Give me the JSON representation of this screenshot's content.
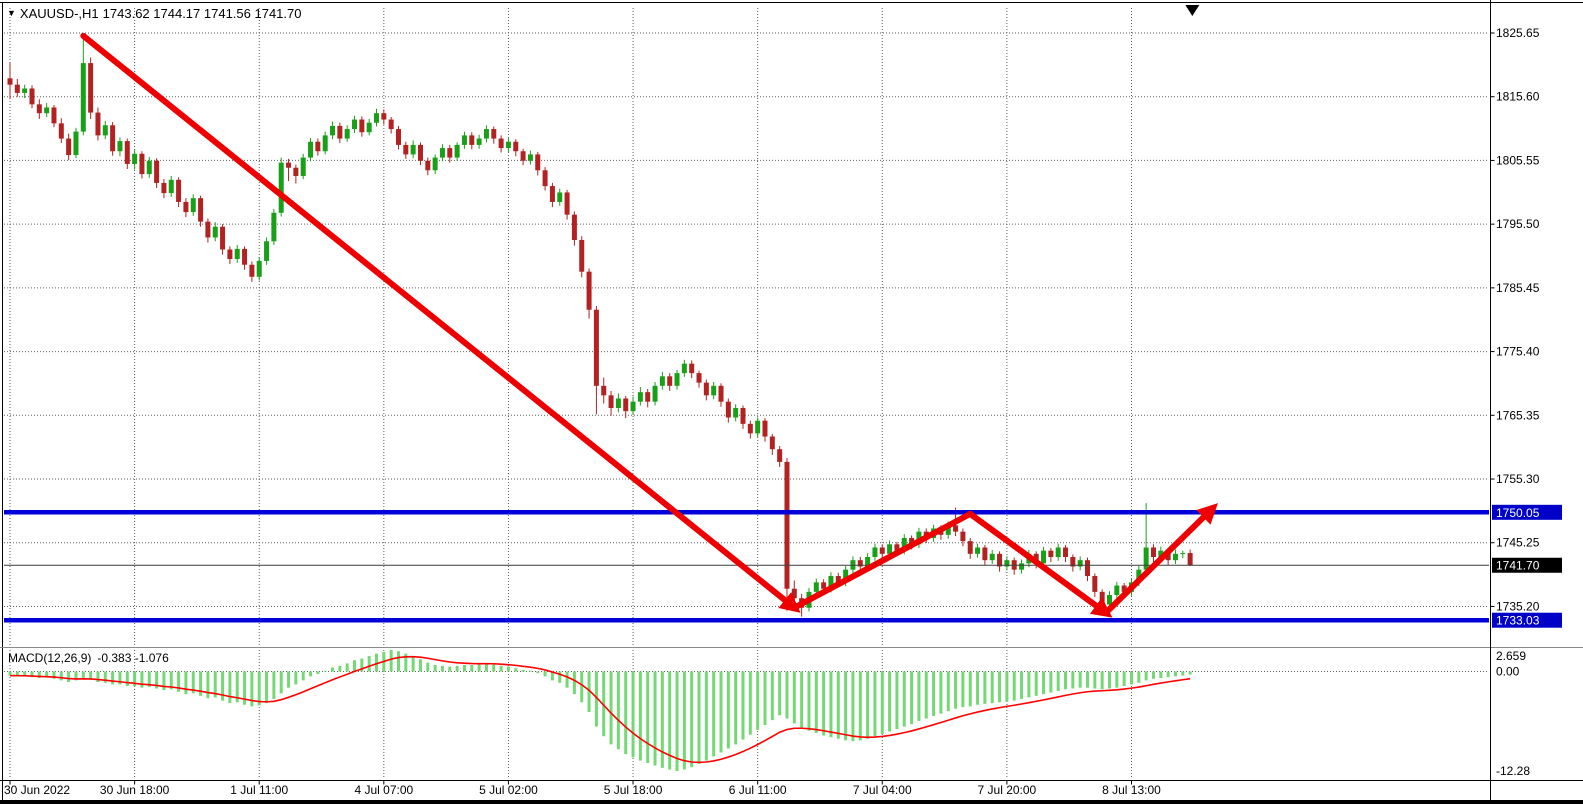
{
  "titlebar": {
    "symbol": "XAUUSD-,H1",
    "ohlc": "1743.62 1744.17 1741.56 1741.70"
  },
  "indicator_label": {
    "name": "MACD(12,26,9)",
    "values": "-0.383 -1.076"
  },
  "colors": {
    "background": "#FFFFFF",
    "grid": "#5E5E5E",
    "candle_up": "#18A118",
    "candle_down": "#B22222",
    "macd_histogram": "#74D974",
    "macd_signal": "#FF0000",
    "hline": "#0000D8",
    "current_price_line": "#3C3C3C",
    "trend_arrow": "#EE0000",
    "tag_blue_bg": "#0000C8",
    "tag_black_bg": "#000000"
  },
  "price_axis": {
    "labels": [
      "1825.65",
      "1815.60",
      "1805.55",
      "1795.50",
      "1785.45",
      "1775.40",
      "1765.35",
      "1755.30",
      "1745.25",
      "1735.20"
    ],
    "tags": [
      {
        "text": "1750.05",
        "price": 1750.05,
        "bg": "#0000C8"
      },
      {
        "text": "1741.70",
        "price": 1741.7,
        "bg": "#000000"
      },
      {
        "text": "1733.03",
        "price": 1733.03,
        "bg": "#0000C8"
      }
    ]
  },
  "macd_axis": [
    {
      "text": "2.659",
      "value": 2.659
    },
    {
      "text": "0.00",
      "value": 0.0
    },
    {
      "text": "-12.28",
      "value": -12.28
    }
  ],
  "time_axis": [
    {
      "text": "30 Jun 2022",
      "bar": 0
    },
    {
      "text": "30 Jun 18:00",
      "bar": 17
    },
    {
      "text": "1 Jul 11:00",
      "bar": 34
    },
    {
      "text": "4 Jul 07:00",
      "bar": 51
    },
    {
      "text": "5 Jul 02:00",
      "bar": 68
    },
    {
      "text": "5 Jul 18:00",
      "bar": 85
    },
    {
      "text": "6 Jul 11:00",
      "bar": 102
    },
    {
      "text": "7 Jul 04:00",
      "bar": 119
    },
    {
      "text": "7 Jul 20:00",
      "bar": 136
    },
    {
      "text": "8 Jul 13:00",
      "bar": 153
    }
  ],
  "levels": {
    "horizontal_lines": [
      {
        "price": 1750.05
      },
      {
        "price": 1733.03
      }
    ],
    "current_price": 1741.7
  },
  "annotations": {
    "trend_arrow": {
      "color": "#EE0000",
      "width": 6,
      "points": [
        [
          10,
          1825.2
        ],
        [
          107,
          1735.0
        ],
        [
          131,
          1749.8
        ],
        [
          149.5,
          1734.2
        ],
        [
          164,
          1750.6
        ]
      ],
      "arrowhead_at": [
        1,
        3,
        4
      ]
    },
    "object_marker": {
      "shape": "down-triangle",
      "color": "#000000",
      "bar": 161.3
    }
  },
  "chart_data": {
    "type": "candlestick",
    "symbol": "XAUUSD-",
    "timeframe": "H1",
    "title": "XAUUSD-,H1",
    "grid": true,
    "price_range": [
      1733.03,
      1825.65
    ],
    "last_ohlc": {
      "open": 1743.62,
      "high": 1744.17,
      "low": 1741.56,
      "close": 1741.7
    },
    "candles": [
      [
        1818.5,
        1821.0,
        1815.2,
        1817.5
      ],
      [
        1817.5,
        1818.4,
        1815.6,
        1816.2
      ],
      [
        1816.2,
        1817.5,
        1815.4,
        1816.9
      ],
      [
        1816.9,
        1817.4,
        1813.8,
        1814.4
      ],
      [
        1814.4,
        1815.2,
        1812.1,
        1813.0
      ],
      [
        1813.0,
        1814.6,
        1812.4,
        1813.9
      ],
      [
        1813.9,
        1814.3,
        1810.8,
        1811.4
      ],
      [
        1811.4,
        1812.2,
        1808.3,
        1809.0
      ],
      [
        1809.0,
        1809.8,
        1805.6,
        1806.4
      ],
      [
        1806.4,
        1810.7,
        1805.9,
        1810.1
      ],
      [
        1810.1,
        1825.3,
        1809.5,
        1820.9
      ],
      [
        1820.9,
        1821.8,
        1812.1,
        1813.1
      ],
      [
        1813.1,
        1813.9,
        1808.7,
        1809.5
      ],
      [
        1809.5,
        1811.8,
        1808.9,
        1811.1
      ],
      [
        1811.1,
        1811.6,
        1806.3,
        1807.0
      ],
      [
        1807.0,
        1809.2,
        1806.2,
        1808.6
      ],
      [
        1808.6,
        1809.0,
        1804.2,
        1805.0
      ],
      [
        1805.0,
        1807.3,
        1804.1,
        1806.6
      ],
      [
        1806.6,
        1807.0,
        1802.7,
        1803.4
      ],
      [
        1803.4,
        1806.1,
        1802.8,
        1805.5
      ],
      [
        1805.5,
        1805.9,
        1801.2,
        1802.0
      ],
      [
        1802.0,
        1802.6,
        1799.6,
        1800.4
      ],
      [
        1800.4,
        1803.1,
        1799.8,
        1802.5
      ],
      [
        1802.5,
        1802.9,
        1798.2,
        1799.0
      ],
      [
        1799.0,
        1799.6,
        1796.6,
        1797.4
      ],
      [
        1797.4,
        1800.2,
        1796.8,
        1799.6
      ],
      [
        1799.6,
        1800.0,
        1795.1,
        1795.9
      ],
      [
        1795.9,
        1796.4,
        1792.6,
        1793.4
      ],
      [
        1793.4,
        1795.8,
        1792.8,
        1795.1
      ],
      [
        1795.1,
        1795.5,
        1790.7,
        1791.5
      ],
      [
        1791.5,
        1792.0,
        1789.2,
        1790.0
      ],
      [
        1790.0,
        1792.2,
        1789.4,
        1791.6
      ],
      [
        1791.6,
        1792.0,
        1788.3,
        1789.1
      ],
      [
        1789.1,
        1789.6,
        1786.4,
        1787.2
      ],
      [
        1787.2,
        1790.3,
        1786.6,
        1789.7
      ],
      [
        1789.7,
        1793.4,
        1789.1,
        1792.8
      ],
      [
        1792.8,
        1797.9,
        1792.2,
        1797.3
      ],
      [
        1797.3,
        1806.0,
        1796.7,
        1805.2
      ],
      [
        1805.2,
        1805.8,
        1802.3,
        1804.4
      ],
      [
        1804.4,
        1804.9,
        1801.9,
        1803.1
      ],
      [
        1803.1,
        1806.6,
        1802.6,
        1806.0
      ],
      [
        1806.0,
        1809.1,
        1805.4,
        1808.5
      ],
      [
        1808.5,
        1809.0,
        1806.3,
        1807.0
      ],
      [
        1807.0,
        1810.1,
        1806.5,
        1809.5
      ],
      [
        1809.5,
        1811.7,
        1808.9,
        1811.0
      ],
      [
        1811.0,
        1811.5,
        1808.3,
        1809.0
      ],
      [
        1809.0,
        1811.1,
        1808.5,
        1810.5
      ],
      [
        1810.5,
        1812.6,
        1809.9,
        1812.0
      ],
      [
        1812.0,
        1812.5,
        1809.3,
        1810.0
      ],
      [
        1810.0,
        1812.1,
        1809.5,
        1811.5
      ],
      [
        1811.5,
        1813.7,
        1810.9,
        1813.0
      ],
      [
        1813.0,
        1813.6,
        1811.2,
        1812.0
      ],
      [
        1812.0,
        1812.4,
        1809.8,
        1810.5
      ],
      [
        1810.5,
        1811.0,
        1807.3,
        1808.0
      ],
      [
        1808.0,
        1808.5,
        1805.8,
        1806.5
      ],
      [
        1806.5,
        1808.7,
        1805.9,
        1808.0
      ],
      [
        1808.0,
        1808.4,
        1804.8,
        1805.5
      ],
      [
        1805.5,
        1806.0,
        1803.2,
        1804.0
      ],
      [
        1804.0,
        1806.5,
        1803.4,
        1806.0
      ],
      [
        1806.0,
        1808.1,
        1805.4,
        1807.5
      ],
      [
        1807.5,
        1808.0,
        1805.2,
        1806.0
      ],
      [
        1806.0,
        1808.4,
        1805.5,
        1808.0
      ],
      [
        1808.0,
        1810.1,
        1807.4,
        1809.5
      ],
      [
        1809.5,
        1810.0,
        1807.3,
        1808.0
      ],
      [
        1808.0,
        1809.6,
        1807.4,
        1809.0
      ],
      [
        1809.0,
        1811.1,
        1808.4,
        1810.5
      ],
      [
        1810.5,
        1810.9,
        1808.2,
        1809.0
      ],
      [
        1809.0,
        1809.5,
        1806.8,
        1807.5
      ],
      [
        1807.5,
        1809.1,
        1806.9,
        1808.5
      ],
      [
        1808.5,
        1808.9,
        1806.2,
        1807.0
      ],
      [
        1807.0,
        1807.4,
        1804.8,
        1805.5
      ],
      [
        1805.5,
        1807.1,
        1804.9,
        1806.5
      ],
      [
        1806.5,
        1806.9,
        1803.2,
        1804.0
      ],
      [
        1804.0,
        1804.5,
        1800.8,
        1801.5
      ],
      [
        1801.5,
        1802.0,
        1798.2,
        1799.0
      ],
      [
        1799.0,
        1801.1,
        1798.4,
        1800.5
      ],
      [
        1800.5,
        1800.9,
        1796.2,
        1797.0
      ],
      [
        1797.0,
        1797.5,
        1792.1,
        1793.0
      ],
      [
        1793.0,
        1793.6,
        1787.1,
        1788.0
      ],
      [
        1788.0,
        1788.5,
        1780.6,
        1782.0
      ],
      [
        1782.0,
        1782.6,
        1765.5,
        1770.0
      ],
      [
        1770.0,
        1771.3,
        1767.2,
        1768.5
      ],
      [
        1768.5,
        1769.2,
        1765.3,
        1766.5
      ],
      [
        1766.5,
        1768.8,
        1765.8,
        1768.0
      ],
      [
        1768.0,
        1768.4,
        1764.9,
        1766.0
      ],
      [
        1766.0,
        1768.3,
        1765.4,
        1767.5
      ],
      [
        1767.5,
        1769.8,
        1766.9,
        1769.0
      ],
      [
        1769.0,
        1769.5,
        1766.6,
        1767.5
      ],
      [
        1767.5,
        1770.6,
        1766.9,
        1770.0
      ],
      [
        1770.0,
        1772.2,
        1769.4,
        1771.5
      ],
      [
        1771.5,
        1772.0,
        1769.2,
        1770.0
      ],
      [
        1770.0,
        1772.5,
        1769.4,
        1772.0
      ],
      [
        1772.0,
        1774.1,
        1771.4,
        1773.5
      ],
      [
        1773.5,
        1774.0,
        1771.2,
        1772.0
      ],
      [
        1772.0,
        1772.4,
        1769.7,
        1770.5
      ],
      [
        1770.5,
        1771.0,
        1767.7,
        1768.5
      ],
      [
        1768.5,
        1770.6,
        1767.9,
        1770.0
      ],
      [
        1770.0,
        1770.4,
        1766.7,
        1767.5
      ],
      [
        1767.5,
        1768.0,
        1764.2,
        1765.0
      ],
      [
        1765.0,
        1767.1,
        1764.4,
        1766.5
      ],
      [
        1766.5,
        1766.9,
        1763.2,
        1764.0
      ],
      [
        1764.0,
        1764.5,
        1761.7,
        1762.5
      ],
      [
        1762.5,
        1765.0,
        1761.9,
        1764.5
      ],
      [
        1764.5,
        1764.9,
        1761.2,
        1762.0
      ],
      [
        1762.0,
        1762.4,
        1759.1,
        1760.0
      ],
      [
        1760.0,
        1760.5,
        1757.2,
        1758.0
      ],
      [
        1758.0,
        1758.6,
        1734.5,
        1738.0
      ],
      [
        1738.0,
        1739.3,
        1735.6,
        1736.5
      ],
      [
        1736.5,
        1737.2,
        1733.6,
        1735.0
      ],
      [
        1735.0,
        1738.1,
        1734.4,
        1737.5
      ],
      [
        1737.5,
        1739.6,
        1736.9,
        1739.0
      ],
      [
        1739.0,
        1739.5,
        1737.2,
        1738.0
      ],
      [
        1738.0,
        1740.6,
        1737.4,
        1740.0
      ],
      [
        1740.0,
        1740.5,
        1738.2,
        1739.0
      ],
      [
        1739.0,
        1741.6,
        1738.4,
        1741.0
      ],
      [
        1741.0,
        1743.1,
        1740.4,
        1742.5
      ],
      [
        1742.5,
        1743.0,
        1740.7,
        1741.5
      ],
      [
        1741.5,
        1743.6,
        1740.9,
        1743.0
      ],
      [
        1743.0,
        1745.1,
        1742.4,
        1744.5
      ],
      [
        1744.5,
        1745.0,
        1742.7,
        1743.5
      ],
      [
        1743.5,
        1745.6,
        1742.9,
        1745.0
      ],
      [
        1745.0,
        1745.4,
        1743.2,
        1744.0
      ],
      [
        1744.0,
        1746.6,
        1743.4,
        1746.0
      ],
      [
        1746.0,
        1746.4,
        1744.2,
        1745.0
      ],
      [
        1745.0,
        1747.6,
        1744.4,
        1747.0
      ],
      [
        1747.0,
        1747.5,
        1745.2,
        1746.0
      ],
      [
        1746.0,
        1748.1,
        1745.4,
        1747.5
      ],
      [
        1747.5,
        1748.0,
        1745.7,
        1746.5
      ],
      [
        1746.5,
        1748.6,
        1745.9,
        1748.0
      ],
      [
        1748.0,
        1750.8,
        1746.3,
        1747.0
      ],
      [
        1747.0,
        1747.5,
        1744.7,
        1745.5
      ],
      [
        1745.5,
        1746.0,
        1742.7,
        1743.5
      ],
      [
        1743.5,
        1745.1,
        1742.9,
        1744.5
      ],
      [
        1744.5,
        1744.9,
        1741.7,
        1742.5
      ],
      [
        1742.5,
        1744.1,
        1741.9,
        1743.5
      ],
      [
        1743.5,
        1743.9,
        1740.7,
        1741.5
      ],
      [
        1741.5,
        1743.1,
        1740.9,
        1742.5
      ],
      [
        1742.5,
        1742.9,
        1740.2,
        1741.0
      ],
      [
        1741.0,
        1742.6,
        1740.4,
        1742.0
      ],
      [
        1742.0,
        1744.1,
        1741.4,
        1743.5
      ],
      [
        1743.5,
        1743.9,
        1741.2,
        1742.0
      ],
      [
        1742.0,
        1744.6,
        1741.4,
        1744.0
      ],
      [
        1744.0,
        1744.4,
        1742.2,
        1743.0
      ],
      [
        1743.0,
        1745.1,
        1742.4,
        1744.5
      ],
      [
        1744.5,
        1744.9,
        1742.2,
        1743.0
      ],
      [
        1743.0,
        1743.4,
        1740.7,
        1741.5
      ],
      [
        1741.5,
        1743.1,
        1740.9,
        1742.5
      ],
      [
        1742.5,
        1742.9,
        1739.2,
        1740.0
      ],
      [
        1740.0,
        1740.4,
        1736.7,
        1737.5
      ],
      [
        1737.5,
        1737.9,
        1734.0,
        1735.5
      ],
      [
        1735.5,
        1737.6,
        1734.9,
        1737.0
      ],
      [
        1737.0,
        1739.1,
        1736.4,
        1738.5
      ],
      [
        1738.5,
        1738.9,
        1736.7,
        1737.5
      ],
      [
        1737.5,
        1739.6,
        1736.9,
        1739.0
      ],
      [
        1739.0,
        1741.6,
        1738.4,
        1741.0
      ],
      [
        1741.0,
        1751.5,
        1740.4,
        1744.5
      ],
      [
        1744.5,
        1745.0,
        1742.2,
        1743.0
      ],
      [
        1743.0,
        1744.6,
        1742.4,
        1744.0
      ],
      [
        1744.0,
        1744.4,
        1741.7,
        1742.5
      ],
      [
        1742.5,
        1744.2,
        1741.9,
        1743.5
      ],
      [
        1743.5,
        1744.0,
        1742.8,
        1743.62
      ],
      [
        1743.62,
        1744.17,
        1741.56,
        1741.7
      ]
    ],
    "indicator": {
      "name": "MACD",
      "params": [
        12,
        26,
        9
      ],
      "macd_last": -0.383,
      "signal_last": -1.076,
      "range": [
        -12.28,
        2.659
      ],
      "histogram": [
        -0.5,
        -0.6,
        -0.55,
        -0.7,
        -0.8,
        -0.75,
        -0.9,
        -1.1,
        -1.3,
        -1.1,
        -0.8,
        -1.0,
        -1.3,
        -1.4,
        -1.6,
        -1.6,
        -1.8,
        -1.8,
        -2.0,
        -1.9,
        -2.1,
        -2.3,
        -2.2,
        -2.5,
        -2.8,
        -2.7,
        -3.0,
        -3.3,
        -3.2,
        -3.6,
        -3.9,
        -3.8,
        -4.1,
        -4.3,
        -4.2,
        -3.9,
        -3.4,
        -2.7,
        -2.0,
        -1.6,
        -1.1,
        -0.6,
        -0.3,
        0.1,
        0.5,
        0.7,
        1.0,
        1.4,
        1.6,
        1.9,
        2.2,
        2.4,
        2.66,
        2.5,
        2.2,
        1.9,
        1.5,
        1.1,
        0.8,
        0.7,
        0.6,
        0.7,
        0.8,
        0.8,
        0.9,
        1.0,
        0.9,
        0.7,
        0.6,
        0.4,
        0.2,
        0.1,
        -0.2,
        -0.6,
        -1.1,
        -1.4,
        -2.0,
        -2.8,
        -3.8,
        -5.0,
        -6.8,
        -8.0,
        -9.0,
        -9.6,
        -10.2,
        -10.6,
        -11.0,
        -11.3,
        -11.6,
        -11.9,
        -12.1,
        -12.28,
        -12.1,
        -11.8,
        -11.4,
        -11.0,
        -10.5,
        -10.0,
        -9.5,
        -9.0,
        -8.4,
        -7.8,
        -7.2,
        -6.6,
        -6.0,
        -5.4,
        -5.8,
        -6.4,
        -7.0,
        -7.3,
        -7.6,
        -7.9,
        -8.1,
        -8.3,
        -8.5,
        -8.6,
        -8.5,
        -8.3,
        -8.0,
        -7.7,
        -7.4,
        -7.1,
        -6.8,
        -6.5,
        -6.1,
        -5.8,
        -5.5,
        -5.2,
        -4.9,
        -4.6,
        -4.4,
        -4.3,
        -4.1,
        -4.0,
        -3.9,
        -3.8,
        -3.7,
        -3.6,
        -3.4,
        -3.2,
        -3.0,
        -2.8,
        -2.6,
        -2.4,
        -2.2,
        -2.1,
        -2.0,
        -2.0,
        -2.1,
        -2.2,
        -2.1,
        -2.0,
        -1.8,
        -1.6,
        -1.4,
        -1.1,
        -0.9,
        -0.8,
        -0.7,
        -0.6,
        -0.5,
        -0.38
      ]
    }
  }
}
